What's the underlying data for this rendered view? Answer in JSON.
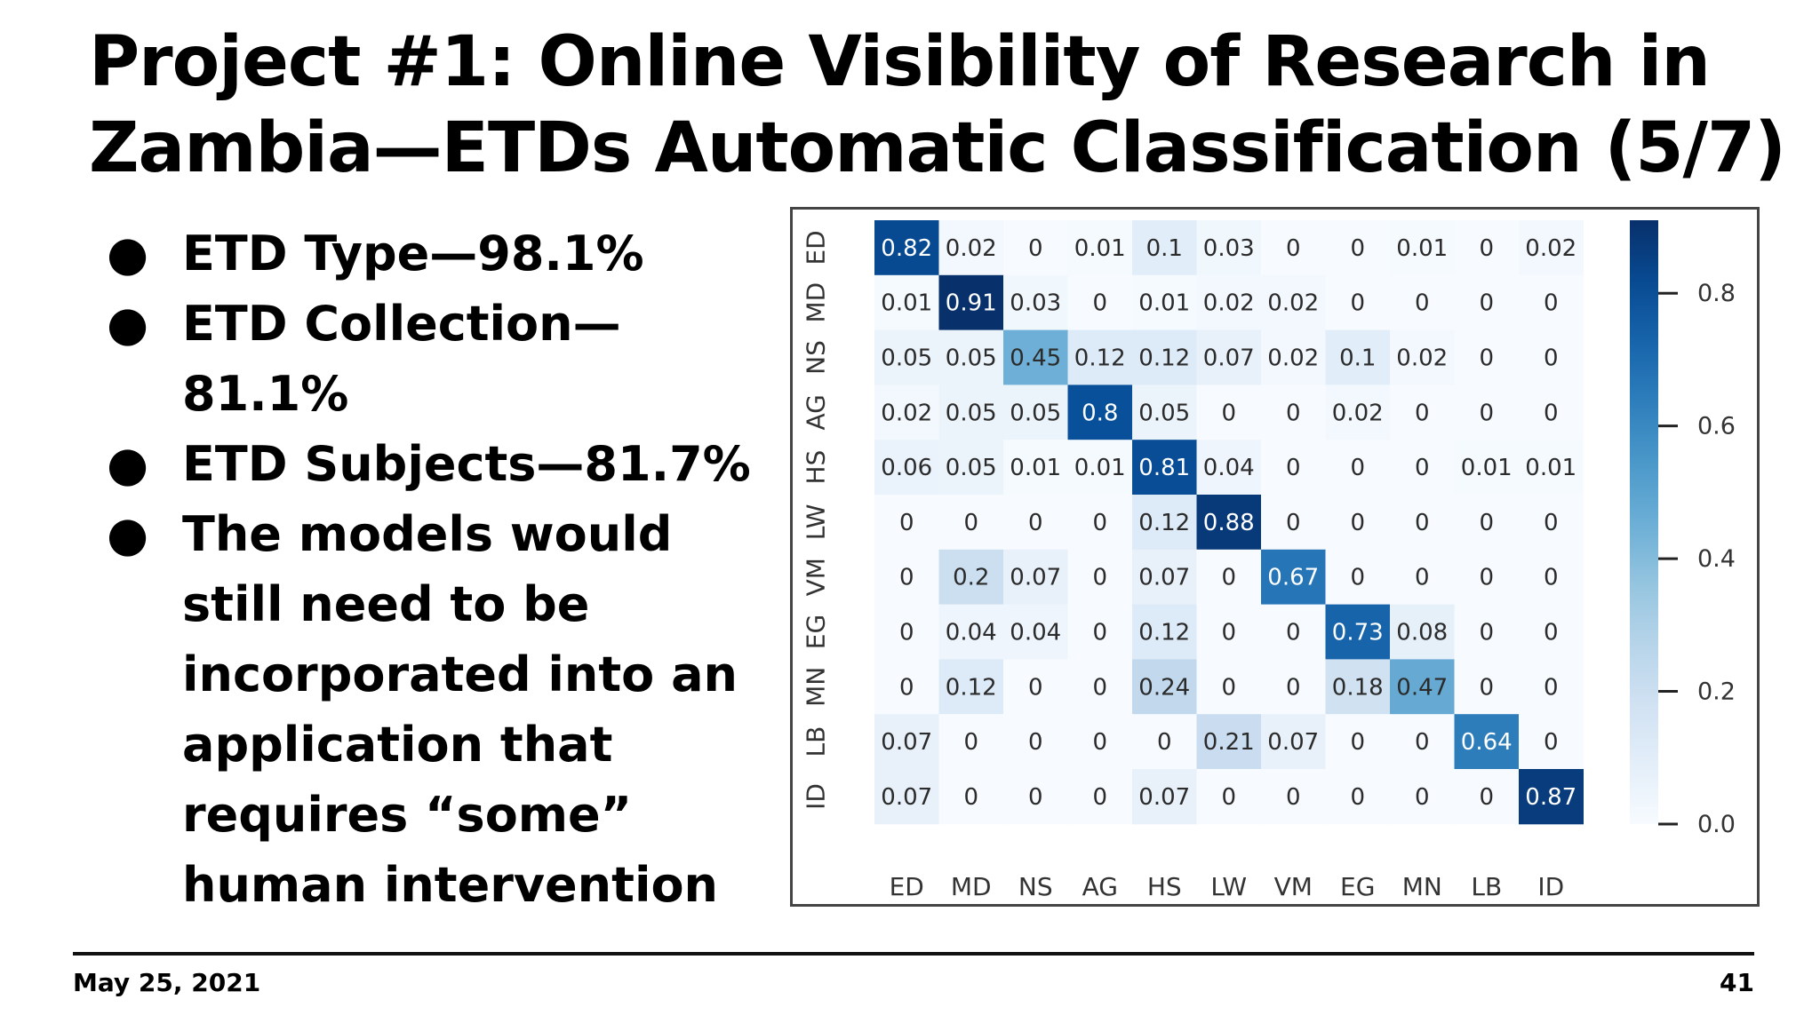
{
  "slide": {
    "title_line1": "Project #1: Online Visibility of Research in",
    "title_line2": "Zambia—ETDs Automatic Classification (5/7)",
    "bullets": [
      {
        "marker": "●",
        "text": "ETD Type—98.1%"
      },
      {
        "marker": "●",
        "text": "ETD Collection— 81.1%"
      },
      {
        "marker": "●",
        "text": "ETD Subjects—81.7%"
      },
      {
        "marker": "●",
        "text": "The models would still need to be incorporated into an application that requires “some” human intervention"
      }
    ],
    "footer_date": "May 25, 2021",
    "page_number": "41"
  },
  "chart_data": {
    "type": "heatmap",
    "x_categories": [
      "ED",
      "MD",
      "NS",
      "AG",
      "HS",
      "LW",
      "VM",
      "EG",
      "MN",
      "LB",
      "ID"
    ],
    "y_categories": [
      "ED",
      "MD",
      "NS",
      "AG",
      "HS",
      "LW",
      "VM",
      "EG",
      "MN",
      "LB",
      "ID"
    ],
    "values": [
      [
        0.82,
        0.02,
        0,
        0.01,
        0.1,
        0.03,
        0,
        0,
        0.01,
        0,
        0.02
      ],
      [
        0.01,
        0.91,
        0.03,
        0,
        0.01,
        0.02,
        0.02,
        0,
        0,
        0,
        0
      ],
      [
        0.05,
        0.05,
        0.45,
        0.12,
        0.12,
        0.07,
        0.02,
        0.1,
        0.02,
        0,
        0
      ],
      [
        0.02,
        0.05,
        0.05,
        0.8,
        0.05,
        0,
        0,
        0.02,
        0,
        0,
        0
      ],
      [
        0.06,
        0.05,
        0.01,
        0.01,
        0.81,
        0.04,
        0,
        0,
        0,
        0.01,
        0.01
      ],
      [
        0,
        0,
        0,
        0,
        0.12,
        0.88,
        0,
        0,
        0,
        0,
        0
      ],
      [
        0,
        0.2,
        0.07,
        0,
        0.07,
        0,
        0.67,
        0,
        0,
        0,
        0
      ],
      [
        0,
        0.04,
        0.04,
        0,
        0.12,
        0,
        0,
        0.73,
        0.08,
        0,
        0
      ],
      [
        0,
        0.12,
        0,
        0,
        0.24,
        0,
        0,
        0.18,
        0.47,
        0,
        0
      ],
      [
        0.07,
        0,
        0,
        0,
        0,
        0.21,
        0.07,
        0,
        0,
        0.64,
        0
      ],
      [
        0.07,
        0,
        0,
        0,
        0.07,
        0,
        0,
        0,
        0,
        0,
        0.87
      ]
    ],
    "colorbar": {
      "range": [
        0,
        0.91
      ],
      "ticks": [
        0.0,
        0.2,
        0.4,
        0.6,
        0.8
      ],
      "tick_labels": [
        "0.0",
        "0.2",
        "0.4",
        "0.6",
        "0.8"
      ],
      "colormap": "Blues"
    }
  }
}
